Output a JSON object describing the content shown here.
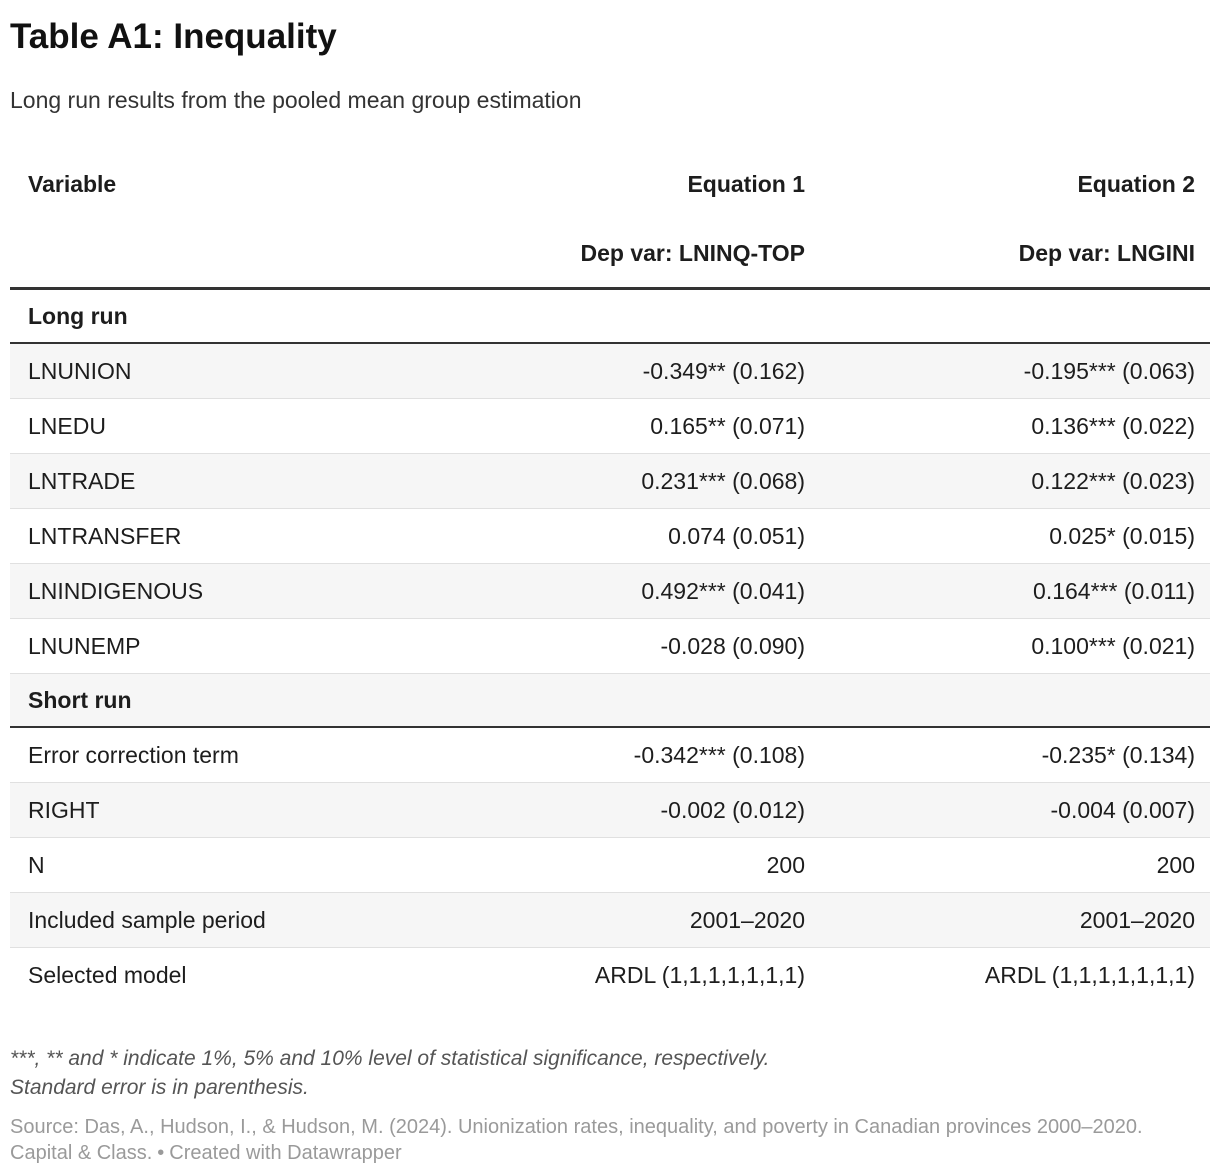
{
  "title": "Table A1: Inequality",
  "subtitle": "Long run results from the pooled mean group estimation",
  "chart_data": {
    "type": "table",
    "title": "Table A1: Inequality",
    "subtitle": "Long run results from the pooled mean group estimation",
    "columns": [
      "Variable",
      "Equation 1",
      "Equation 2"
    ],
    "dep_vars": [
      "",
      "Dep var: LNINQ-TOP",
      "Dep var: LNGINI"
    ],
    "rows": [
      {
        "kind": "section",
        "label": "Long run",
        "eq1": "",
        "eq2": ""
      },
      {
        "kind": "data",
        "label": "LNUNION",
        "eq1": "-0.349** (0.162)",
        "eq2": "-0.195*** (0.063)"
      },
      {
        "kind": "data",
        "label": "LNEDU",
        "eq1": "0.165** (0.071)",
        "eq2": "0.136*** (0.022)"
      },
      {
        "kind": "data",
        "label": "LNTRADE",
        "eq1": "0.231*** (0.068)",
        "eq2": "0.122*** (0.023)"
      },
      {
        "kind": "data",
        "label": "LNTRANSFER",
        "eq1": "0.074 (0.051)",
        "eq2": "0.025* (0.015)"
      },
      {
        "kind": "data",
        "label": "LNINDIGENOUS",
        "eq1": "0.492*** (0.041)",
        "eq2": "0.164*** (0.011)"
      },
      {
        "kind": "data",
        "label": "LNUNEMP",
        "eq1": "-0.028 (0.090)",
        "eq2": "0.100*** (0.021)"
      },
      {
        "kind": "section",
        "label": "Short run",
        "eq1": "",
        "eq2": ""
      },
      {
        "kind": "data",
        "label": "Error correction term",
        "eq1": "-0.342*** (0.108)",
        "eq2": "-0.235* (0.134)"
      },
      {
        "kind": "data",
        "label": "RIGHT",
        "eq1": "-0.002 (0.012)",
        "eq2": "-0.004 (0.007)"
      },
      {
        "kind": "data",
        "label": "N",
        "eq1": "200",
        "eq2": "200"
      },
      {
        "kind": "data",
        "label": "Included sample period",
        "eq1": "2001–2020",
        "eq2": "2001–2020"
      },
      {
        "kind": "data",
        "label": "Selected model",
        "eq1": "ARDL (1,1,1,1,1,1,1)",
        "eq2": "ARDL (1,1,1,1,1,1,1)"
      }
    ],
    "notes": [
      "***, ** and * indicate 1%, 5% and 10% level of statistical significance, respectively.",
      "Standard error is in parenthesis."
    ],
    "source": "Source: Das, A., Hudson, I., & Hudson, M. (2024). Unionization rates, inequality, and poverty in Canadian provinces 2000–2020. Capital & Class.",
    "credit": "Created with Datawrapper"
  },
  "footer": {
    "note_line1": "***, ** and * indicate 1%, 5% and 10% level of statistical significance, respectively.",
    "note_line2": "Standard error is in parenthesis.",
    "source_text": "Source: Das, A., Hudson, I., & Hudson, M. (2024). Unionization rates, inequality, and poverty in Canadian provinces 2000–2020. Capital & Class.",
    "separator": "•",
    "credit": "Created with Datawrapper"
  },
  "colors": {
    "stripe": "#f6f6f6",
    "rule_dark": "#333333",
    "row_divider": "#e0e0e0",
    "text": "#222222",
    "subtitle_color": "#333333",
    "notes_color": "#555555",
    "source_color": "#9a9a9a"
  }
}
